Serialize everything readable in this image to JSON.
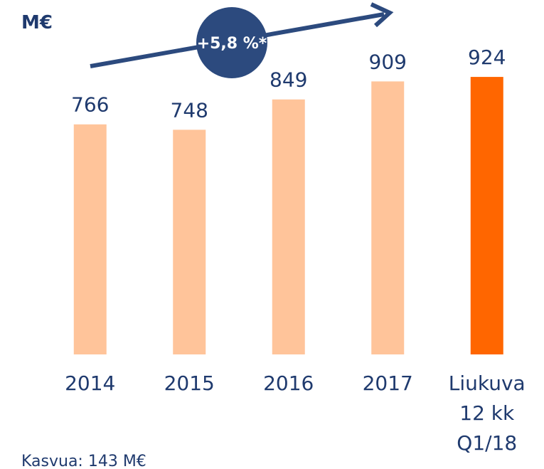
{
  "chart_data": {
    "type": "bar",
    "unit_label": "M€",
    "annotation": "+5,8 %*",
    "footnote": "Kasvua: 143 M€",
    "categories": [
      "2014",
      "2015",
      "2016",
      "2017",
      "Liukuva\n12 kk\nQ1/18"
    ],
    "values": [
      766,
      748,
      849,
      909,
      924
    ],
    "colors": [
      "#ffc49a",
      "#ffc49a",
      "#ffc49a",
      "#ffc49a",
      "#ff6600"
    ],
    "ylim": [
      0,
      1000
    ]
  }
}
